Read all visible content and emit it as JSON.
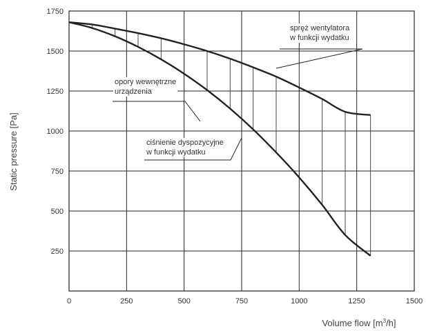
{
  "chart_data": {
    "type": "line",
    "xlabel": "Volume flow [m",
    "xlabel_sup": "3",
    "xlabel_end": "/h]",
    "ylabel": "Static pressure [Pa]",
    "xlim": [
      0,
      1500
    ],
    "ylim": [
      0,
      1750
    ],
    "x_ticks": [
      "0",
      "250",
      "500",
      "750",
      "1000",
      "1250",
      "1500"
    ],
    "y_ticks": [
      "250",
      "500",
      "750",
      "1000",
      "1250",
      "1500",
      "1750"
    ],
    "grid": true,
    "series": [
      {
        "name": "spręż wentylatora w funkcji wydatku",
        "x": [
          0,
          100,
          200,
          300,
          400,
          500,
          600,
          700,
          800,
          900,
          1000,
          1100,
          1200,
          1310
        ],
        "y": [
          1680,
          1666,
          1640,
          1612,
          1580,
          1542,
          1500,
          1452,
          1398,
          1340,
          1272,
          1200,
          1120,
          1100
        ]
      },
      {
        "name": "ciśnienie dyspozycyjne w funkcji wydatku",
        "x": [
          0,
          100,
          200,
          300,
          400,
          500,
          600,
          700,
          800,
          900,
          1000,
          1100,
          1200,
          1310
        ],
        "y": [
          1680,
          1644,
          1592,
          1526,
          1448,
          1358,
          1256,
          1140,
          1010,
          866,
          710,
          538,
          350,
          220
        ]
      }
    ],
    "hatch_x": [
      100,
      200,
      300,
      400,
      500,
      600,
      700,
      800,
      900,
      1000,
      1100,
      1200,
      1310
    ],
    "annotations": [
      {
        "id": "fan",
        "lines": [
          "spręż wentylatora",
          "w funkcji wydatku"
        ]
      },
      {
        "id": "internal",
        "lines": [
          "opory wewnętrzne",
          "urządzenia"
        ]
      },
      {
        "id": "available",
        "lines": [
          "ciśnienie dyspozycyjne",
          "w funkcji wydatku"
        ]
      }
    ]
  }
}
